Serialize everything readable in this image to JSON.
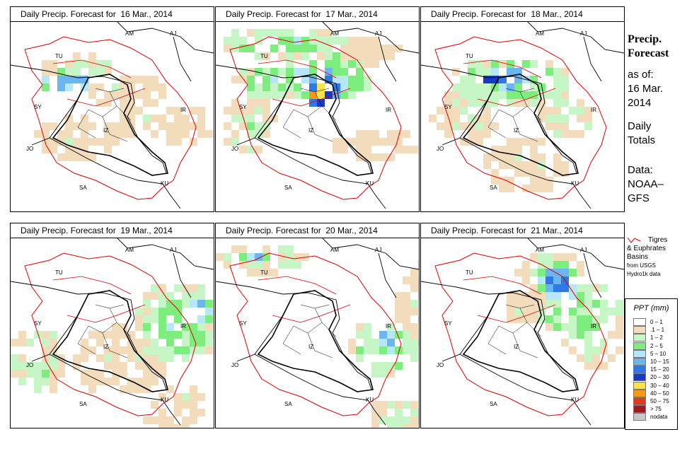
{
  "panels": [
    {
      "title": "Daily Precip. Forecast for  16 Mar., 2014"
    },
    {
      "title": "Daily Precip. Forecast for  17 Mar., 2014"
    },
    {
      "title": "Daily Precip. Forecast for  18 Mar., 2014"
    },
    {
      "title": "Daily Precip. Forecast for  19 Mar., 2014"
    },
    {
      "title": "Daily Precip. Forecast for  20 Mar., 2014"
    },
    {
      "title": "Daily Precip. Forecast for  21 Mar., 2014"
    }
  ],
  "country_labels": [
    "AM",
    "AJ",
    "TU",
    "SY",
    "IR",
    "JO",
    "SA",
    "KU",
    "IZ"
  ],
  "side": {
    "title_line1": "Precip.",
    "title_line2": "Forecast",
    "asof": "as of:",
    "date_line1": "16 Mar.",
    "date_line2": "2014",
    "daily_line1": "Daily",
    "daily_line2": "Totals",
    "data_line1": "Data:",
    "data_line2": "NOAA–",
    "data_line3": "GFS"
  },
  "basin_legend": {
    "line1": "Tigres",
    "line2": "& Euphrates",
    "line3": "Basins",
    "line4": "from USGS",
    "line5": "Hydro1k data",
    "basin_color": "#e00000"
  },
  "ppt_legend": {
    "title": "PPT (mm)",
    "items": [
      {
        "label": "0 – 1",
        "color": "#ffffff"
      },
      {
        "label": ".1 – 1",
        "color": "#f2dcbc"
      },
      {
        "label": "1 – 2",
        "color": "#c6f5c6"
      },
      {
        "label": "2 – 5",
        "color": "#7ded7d"
      },
      {
        "label": "5 – 10",
        "color": "#b6e6f7"
      },
      {
        "label": "10 – 15",
        "color": "#6bb5f0"
      },
      {
        "label": "15 – 20",
        "color": "#2f78e6"
      },
      {
        "label": "20 – 30",
        "color": "#1838c8"
      },
      {
        "label": "30 – 40",
        "color": "#f7e24a"
      },
      {
        "label": "40 – 50",
        "color": "#f59a10"
      },
      {
        "label": "50 – 75",
        "color": "#e2391b"
      },
      {
        "label": "> 75",
        "color": "#9a1c1c"
      },
      {
        "label": "nodata",
        "color": "#c8c8c8"
      }
    ]
  }
}
